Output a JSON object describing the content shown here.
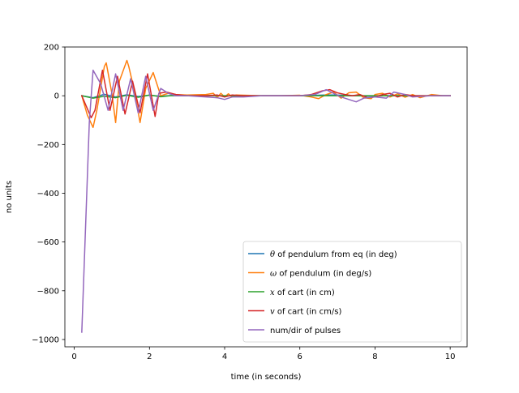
{
  "chart_data": {
    "type": "line",
    "title": "",
    "xlabel": "time (in seconds)",
    "ylabel": "no units",
    "xlim": [
      -0.25,
      10.45
    ],
    "ylim": [
      -1030,
      200
    ],
    "xticks": [
      0,
      2,
      4,
      6,
      8,
      10
    ],
    "yticks": [
      -1000,
      -800,
      -600,
      -400,
      -200,
      0,
      200
    ],
    "grid": false,
    "legend_position": "lower-right",
    "series": [
      {
        "name_prefix": "θ",
        "name": " of pendulum from eq (in deg)",
        "color": "#1f77b4",
        "x": [
          0.2,
          0.5,
          0.8,
          1.1,
          1.4,
          1.7,
          2.0,
          2.3,
          2.6,
          3.0,
          3.5,
          3.8,
          4.0,
          4.2,
          4.5,
          5.0,
          5.5,
          6.0,
          6.3,
          6.5,
          6.7,
          6.9,
          7.1,
          7.3,
          7.5,
          7.7,
          8.0,
          8.3,
          8.5,
          8.8,
          9.0,
          9.5,
          10.0
        ],
        "y": [
          0,
          -8,
          6,
          -5,
          4,
          -3,
          2,
          -2,
          1,
          0,
          0,
          2,
          -2,
          1,
          0,
          0,
          0,
          0,
          0,
          2,
          3,
          3,
          2,
          0,
          1,
          -1,
          -1,
          0,
          1,
          0,
          -1,
          0,
          0
        ]
      },
      {
        "name_prefix": "ω",
        "name": " of pendulum (in deg/s)",
        "color": "#ff7f0e",
        "x": [
          0.2,
          0.35,
          0.5,
          0.6,
          0.8,
          0.85,
          1.0,
          1.1,
          1.2,
          1.4,
          1.45,
          1.6,
          1.75,
          1.9,
          2.1,
          2.3,
          2.5,
          2.7,
          3.0,
          3.5,
          3.7,
          3.8,
          3.9,
          4.0,
          4.1,
          4.2,
          4.3,
          4.5,
          5.0,
          5.5,
          6.0,
          6.3,
          6.5,
          6.7,
          6.9,
          7.1,
          7.3,
          7.5,
          7.7,
          7.9,
          8.0,
          8.2,
          8.4,
          8.6,
          8.8,
          9.0,
          9.2,
          9.5,
          9.8,
          10.0
        ],
        "y": [
          0,
          -80,
          -130,
          -60,
          120,
          135,
          10,
          -110,
          60,
          145,
          120,
          20,
          -110,
          30,
          95,
          0,
          10,
          5,
          3,
          5,
          10,
          -8,
          10,
          -5,
          8,
          -5,
          3,
          2,
          0,
          0,
          2,
          -5,
          -12,
          5,
          15,
          -10,
          12,
          15,
          -8,
          -12,
          5,
          10,
          -5,
          8,
          -6,
          5,
          -8,
          5,
          0,
          0
        ]
      },
      {
        "name_prefix": "x",
        "name": " of cart (in cm)",
        "color": "#2ca02c",
        "x": [
          0.2,
          0.5,
          0.8,
          1.1,
          1.4,
          1.7,
          2.0,
          2.3,
          2.6,
          3.0,
          4.0,
          5.0,
          6.0,
          6.5,
          7.0,
          7.5,
          8.0,
          8.5,
          9.0,
          9.5,
          10.0
        ],
        "y": [
          0,
          -10,
          -2,
          -8,
          2,
          -6,
          3,
          -4,
          1,
          0,
          0,
          0,
          0,
          0,
          0,
          0,
          0,
          0,
          0,
          0,
          0
        ]
      },
      {
        "name_prefix": "v",
        "name": " of cart  (in cm/s)",
        "color": "#d62728",
        "x": [
          0.2,
          0.45,
          0.55,
          0.75,
          0.95,
          1.15,
          1.35,
          1.55,
          1.75,
          1.95,
          2.15,
          2.25,
          2.45,
          2.7,
          3.0,
          3.5,
          3.8,
          4.0,
          4.2,
          4.5,
          5.0,
          5.5,
          6.0,
          6.3,
          6.6,
          6.8,
          7.0,
          7.2,
          7.4,
          7.6,
          7.8,
          8.0,
          8.2,
          8.4,
          8.6,
          8.8,
          9.0,
          9.5,
          10.0
        ],
        "y": [
          0,
          -90,
          -60,
          105,
          -60,
          80,
          -75,
          60,
          -70,
          90,
          -85,
          10,
          15,
          5,
          0,
          0,
          3,
          -5,
          3,
          0,
          0,
          0,
          0,
          5,
          20,
          25,
          12,
          5,
          0,
          5,
          -8,
          -5,
          5,
          10,
          -5,
          5,
          0,
          0,
          0
        ]
      },
      {
        "name_prefix": "",
        "name": "num/dir of pulses",
        "color": "#9467bd",
        "x": [
          0.2,
          0.4,
          0.5,
          0.7,
          0.9,
          1.1,
          1.3,
          1.5,
          1.7,
          1.9,
          2.1,
          2.3,
          2.5,
          2.7,
          3.0,
          3.5,
          3.8,
          4.0,
          4.2,
          4.5,
          5.0,
          5.5,
          6.0,
          6.4,
          6.7,
          6.9,
          7.1,
          7.3,
          7.5,
          7.7,
          8.0,
          8.3,
          8.5,
          8.8,
          9.0,
          9.5,
          10.0
        ],
        "y": [
          -970,
          -110,
          105,
          50,
          -60,
          90,
          -60,
          70,
          -70,
          80,
          -60,
          30,
          10,
          0,
          0,
          -5,
          -8,
          -15,
          -5,
          -5,
          0,
          0,
          0,
          5,
          25,
          10,
          -5,
          -15,
          -25,
          -10,
          -5,
          -10,
          15,
          5,
          -5,
          0,
          0
        ]
      }
    ]
  }
}
